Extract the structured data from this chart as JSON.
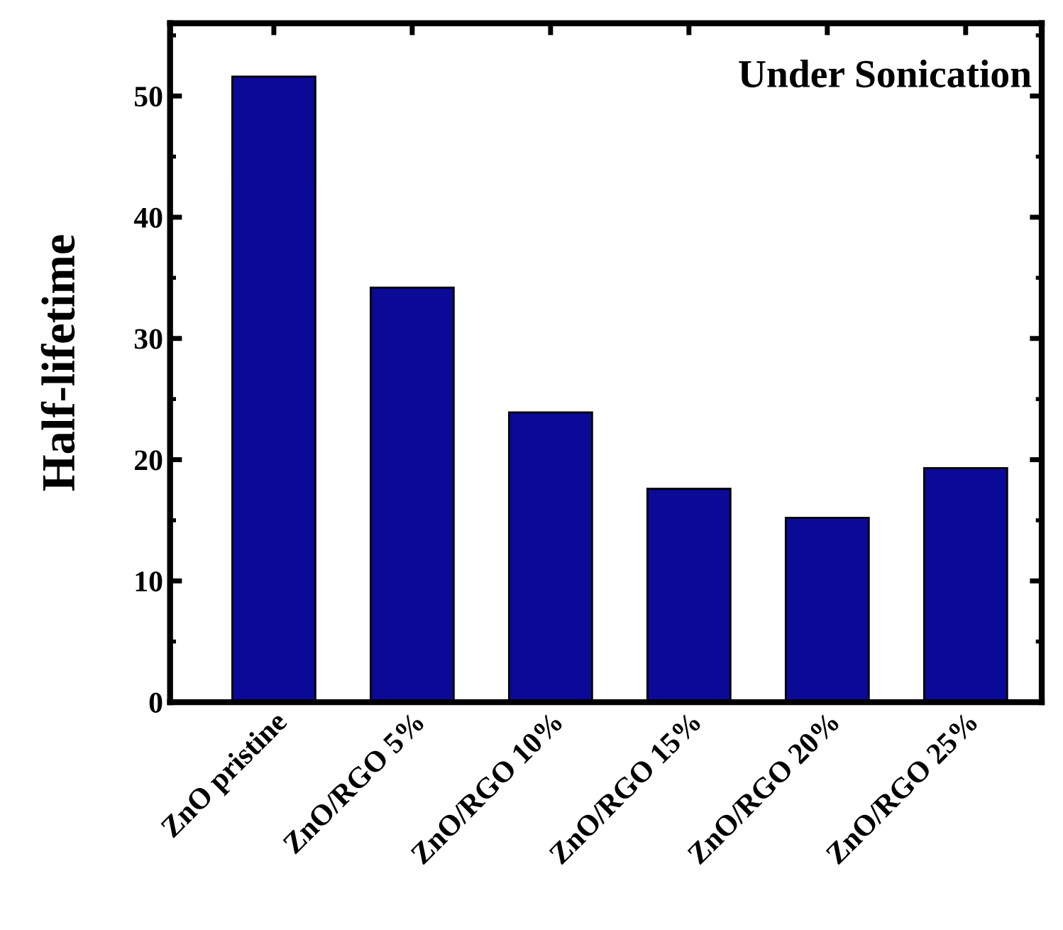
{
  "chart_data": {
    "type": "bar",
    "ylabel": "Half-lifetime",
    "annotations": [
      "Under Sonication"
    ],
    "categories": [
      "ZnO pristine",
      "ZnO/RGO 5%",
      "ZnO/RGO 10%",
      "ZnO/RGO 15%",
      "ZnO/RGO 20%",
      "ZnO/RGO 25%"
    ],
    "values": [
      51.6,
      34.2,
      23.9,
      17.6,
      15.2,
      19.3
    ],
    "color": "#0a0a96",
    "ylim": [
      0,
      56
    ],
    "yticks": [
      0,
      10,
      20,
      30,
      40,
      50
    ],
    "grid": false
  }
}
